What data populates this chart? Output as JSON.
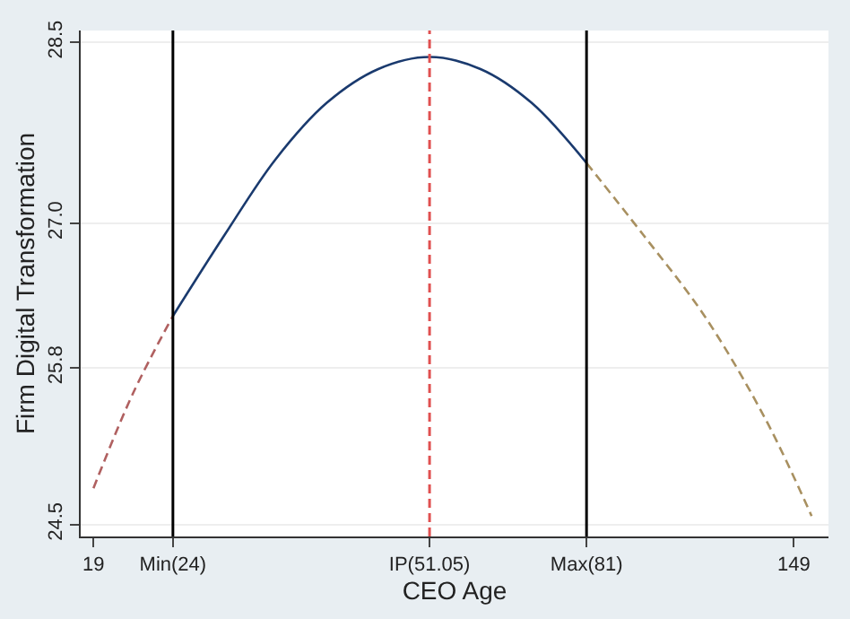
{
  "chart_data": {
    "type": "line",
    "xlabel": "CEO Age",
    "ylabel": "Firm Digital Transformation",
    "series": [
      {
        "x": [
          19,
          21.35,
          24
        ],
        "values": [
          24.8,
          25.59,
          26.23
        ],
        "color": "#b06060",
        "line_style": "dashed"
      },
      {
        "x": [
          24,
          27.92,
          32.45,
          37.74,
          43.9,
          51.05,
          59.3,
          68.9,
          81
        ],
        "values": [
          26.23,
          26.9,
          27.53,
          28.0,
          28.28,
          28.38,
          28.28,
          28.0,
          27.5
        ],
        "color": "#1a3a6e",
        "line_style": "solid"
      },
      {
        "x": [
          81,
          95.8,
          114.6,
          137.2,
          157
        ],
        "values": [
          27.5,
          26.9,
          26.23,
          25.37,
          24.57
        ],
        "color": "#a89060",
        "line_style": "dashed"
      }
    ],
    "ref_lines": [
      {
        "axis": "x",
        "value": 24,
        "color": "#000000",
        "line_style": "solid"
      },
      {
        "axis": "x",
        "value": 51.05,
        "color": "#e05050",
        "line_style": "dashed"
      },
      {
        "axis": "x",
        "value": 81,
        "color": "#000000",
        "line_style": "solid"
      }
    ],
    "log": "x",
    "xlim": [
      18.3,
      165
    ],
    "ylim": [
      24.4,
      28.6
    ],
    "xticks": [
      19,
      {
        "value": 24,
        "label": "Min(24)"
      },
      {
        "value": 51.05,
        "label": "IP(51.05)"
      },
      {
        "value": 81,
        "label": "Max(81)"
      },
      149
    ],
    "yticks": [
      {
        "value": 24.5,
        "label": "24.5"
      },
      {
        "value": 25.8,
        "label": "25.8"
      },
      {
        "value": 27.0,
        "label": "27.0"
      },
      {
        "value": 28.5,
        "label": "28.5"
      }
    ],
    "grid": "y",
    "marker": "none"
  }
}
